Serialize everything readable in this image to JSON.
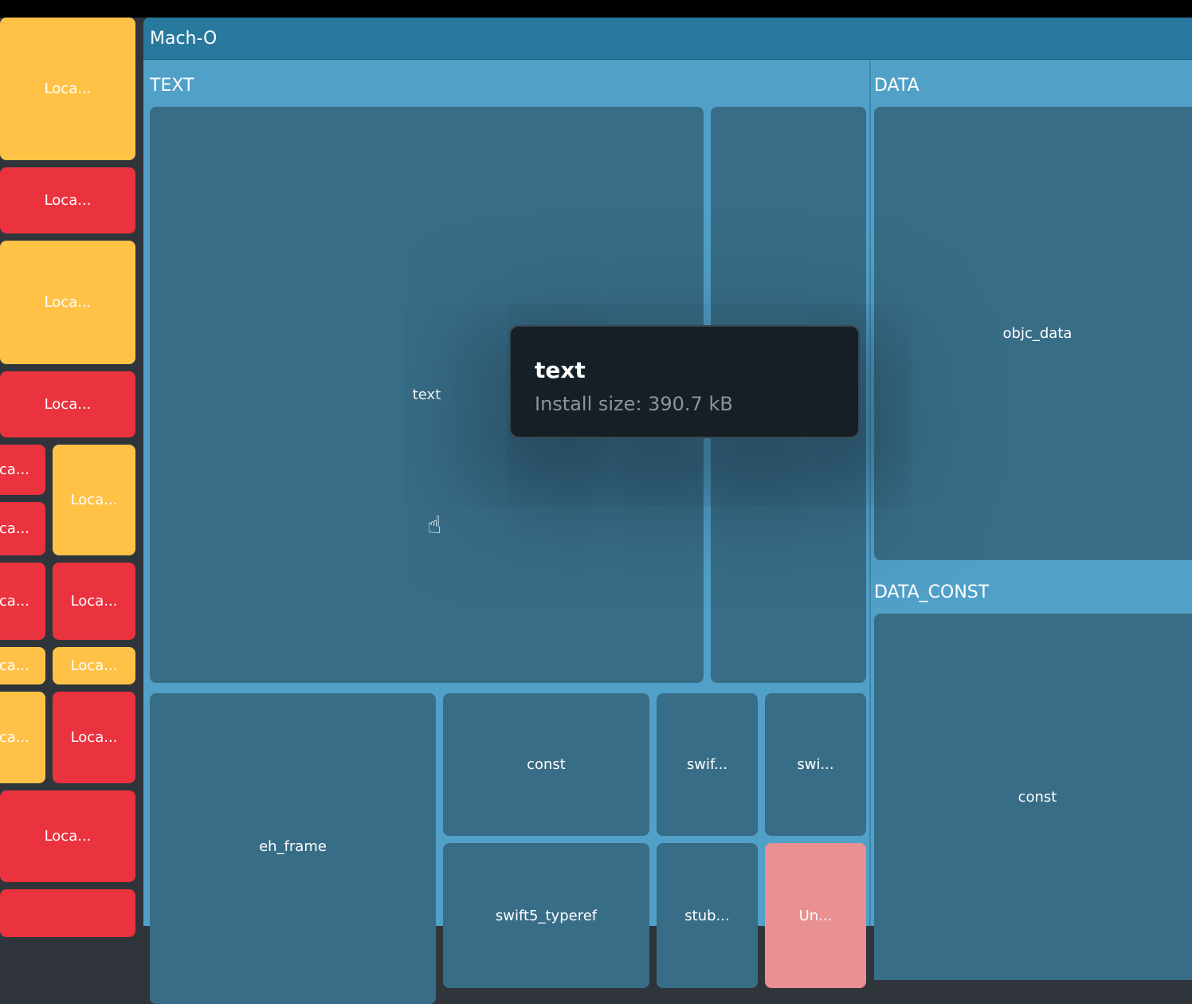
{
  "left_tiles": [
    "Loca...",
    "ca..."
  ],
  "machO": {
    "title": "Mach-O"
  },
  "text_group": {
    "title": "TEXT",
    "tiles": {
      "text": "text",
      "eh_frame": "eh_frame",
      "const": "const",
      "swif": "swif...",
      "swi": "swi...",
      "swift5_typeref": "swift5_typeref",
      "stub": "stub...",
      "un": "Un..."
    }
  },
  "data_group": {
    "title": "DATA",
    "objc_data": "objc_data"
  },
  "data_const_group": {
    "title": "DATA_CONST",
    "const": "const"
  },
  "tooltip": {
    "title": "text",
    "subtitle": "Install size: 390.7 kB"
  },
  "colors": {
    "yellow": "#ffc247",
    "red": "#ea333e",
    "header": "#29789e",
    "group": "#51a0c8",
    "tile": "#386d87",
    "pink": "#e99090"
  }
}
